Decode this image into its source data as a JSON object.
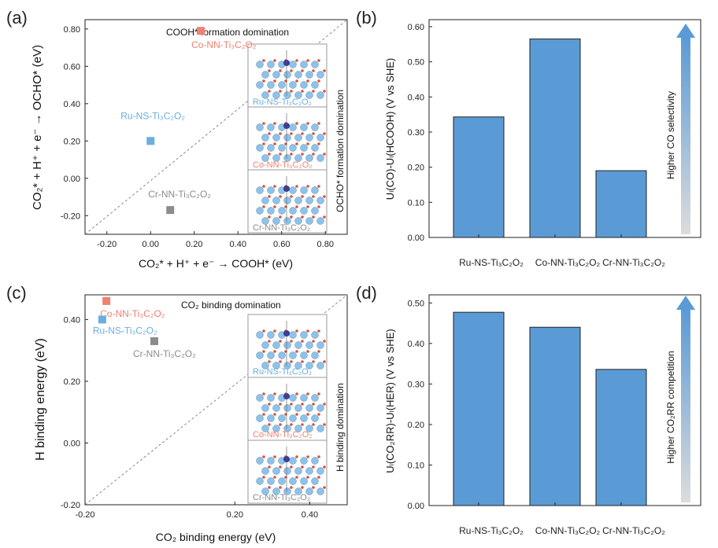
{
  "chart_data": [
    {
      "panel": "(a)",
      "type": "scatter",
      "xlabel": "CO₂* + H⁺ + e⁻ → COOH* (eV)",
      "ylabel": "CO₂* + H⁺ + e⁻ → OCHO* (eV)",
      "xlim": [
        -0.3,
        0.9
      ],
      "ylim": [
        -0.3,
        0.85
      ],
      "xticks": [
        "-0.20",
        "0.00",
        "0.20",
        "0.40",
        "0.60",
        "0.80"
      ],
      "yticks": [
        "-0.20",
        "0.00",
        "0.20",
        "0.40",
        "0.60",
        "0.80"
      ],
      "annotations": [
        "COOH* formation domination",
        "OCHO* formation domination"
      ],
      "points": [
        {
          "label": "Co-NN-Ti₃C₂O₂",
          "x": 0.23,
          "y": 0.79,
          "color": "#f08070"
        },
        {
          "label": "Ru-NS-Ti₃C₂O₂",
          "x": 0.0,
          "y": 0.2,
          "color": "#6aaee0"
        },
        {
          "label": "Cr-NN-Ti₃C₂O₂",
          "x": 0.09,
          "y": -0.17,
          "color": "#8c8c8c"
        }
      ],
      "inset_labels": [
        "Ru-NS-Ti₃C₂O₂",
        "Co-NN-Ti₃C₂O₂",
        "Cr-NN-Ti₃C₂O₂"
      ]
    },
    {
      "panel": "(b)",
      "type": "bar",
      "ylabel": "Uₗ(CO)-Uₗ(HCOOH) (V vs SHE)",
      "ylim": [
        0,
        0.62
      ],
      "yticks": [
        "0.00",
        "0.10",
        "0.20",
        "0.30",
        "0.40",
        "0.50",
        "0.60"
      ],
      "categories": [
        "Ru-NS-Ti₃C₂O₂",
        "Co-NN-Ti₃C₂O₂",
        "Cr-NN-Ti₃C₂O₂"
      ],
      "values": [
        0.343,
        0.565,
        0.19
      ],
      "arrow_label": "Higher CO selectivity"
    },
    {
      "panel": "(c)",
      "type": "scatter",
      "xlabel": "CO₂ binding energy (eV)",
      "ylabel": "H binding energy (eV)",
      "xlim": [
        -0.2,
        0.5
      ],
      "ylim": [
        -0.2,
        0.48
      ],
      "xticks": [
        "-0.20",
        "0.20",
        "0.40"
      ],
      "yticks": [
        "-0.20",
        "0.00",
        "0.20",
        "0.40"
      ],
      "annotations": [
        "CO₂ binding domination",
        "H binding domination"
      ],
      "points": [
        {
          "label": "Co-NN-Ti₃C₂O₂",
          "x": -0.143,
          "y": 0.46,
          "color": "#f08070"
        },
        {
          "label": "Ru-NS-Ti₃C₂O₂",
          "x": -0.154,
          "y": 0.4,
          "color": "#6aaee0"
        },
        {
          "label": "Cr-NN-Ti₃C₂O₂",
          "x": -0.015,
          "y": 0.33,
          "color": "#8c8c8c"
        }
      ],
      "inset_labels": [
        "Ru-NS-Ti₃C₂O₂",
        "Co-NN-Ti₃C₂O₂",
        "Cr-NN-Ti₃C₂O₂"
      ]
    },
    {
      "panel": "(d)",
      "type": "bar",
      "ylabel": "Uₗ(CO₂RR)-Uₗ(HER) (V vs SHE)",
      "ylim": [
        0,
        0.52
      ],
      "yticks": [
        "0.00",
        "0.10",
        "0.20",
        "0.30",
        "0.40",
        "0.50"
      ],
      "categories": [
        "Ru-NS-Ti₃C₂O₂",
        "Co-NN-Ti₃C₂O₂",
        "Cr-NN-Ti₃C₂O₂"
      ],
      "values": [
        0.477,
        0.44,
        0.336
      ],
      "arrow_label": "Higher CO₂RR competition"
    }
  ],
  "colors": {
    "bar": "#5b9bd5",
    "ru": "#6aaee0",
    "co": "#f08070",
    "cr": "#8c8c8c",
    "arrow_top": "#5b9bd5",
    "arrow_bottom": "#dcdcdc"
  }
}
